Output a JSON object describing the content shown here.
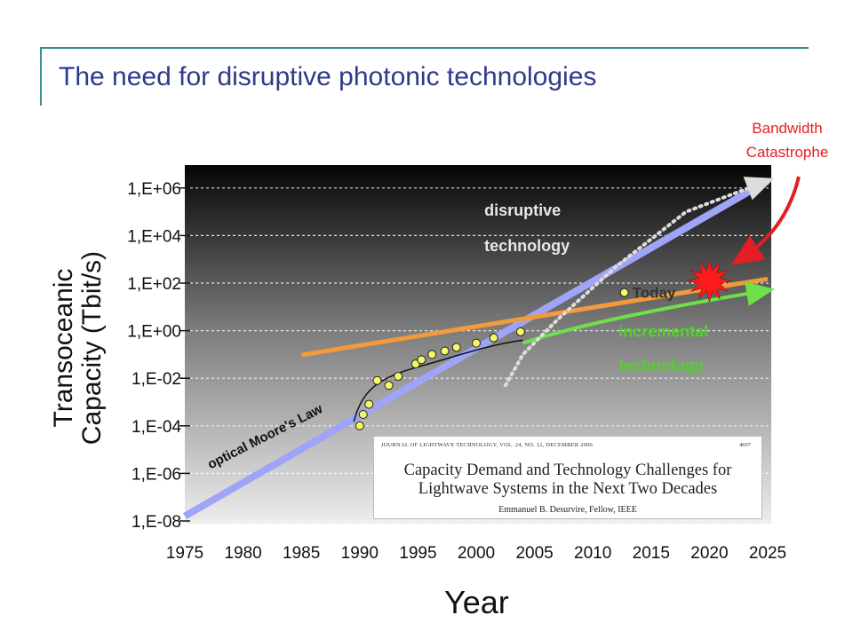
{
  "slide": {
    "title": "The need for disruptive photonic technologies",
    "callout_lines": [
      "Bandwidth",
      "Catastrophe"
    ]
  },
  "chart_data": {
    "type": "line",
    "title": "",
    "xlabel": "Year",
    "ylabel_lines": [
      "Transoceanic",
      "Capacity (Tbit/s)"
    ],
    "x_ticks": [
      "1975",
      "1980",
      "1985",
      "1990",
      "1995",
      "2000",
      "2005",
      "2010",
      "2015",
      "2020",
      "2025"
    ],
    "y_ticks": [
      "1,E-08",
      "1,E-06",
      "1,E-04",
      "1,E-02",
      "1,E+00",
      "1,E+02",
      "1,E+04",
      "1,E+06"
    ],
    "xlim": [
      1975,
      2025
    ],
    "ylim_log10": [
      -8,
      6.6
    ],
    "yscale": "log",
    "grid": true,
    "series": [
      {
        "name": "optical Moore's Law",
        "color": "#a0a4f8",
        "points": [
          [
            1975,
            1.6e-08
          ],
          [
            2025,
            2000000.0
          ]
        ]
      },
      {
        "name": "",
        "color": "#f39a3b",
        "points": [
          [
            1975,
            0.015
          ],
          [
            2025,
            150
          ]
        ],
        "start": 1975.2
      },
      {
        "name": "incremental technology",
        "color": "#6fe04a",
        "points": [
          [
            2004,
            0.3
          ],
          [
            2010,
            3
          ],
          [
            2025,
            50
          ]
        ]
      },
      {
        "name": "disruptive technology",
        "color": "#dddddd",
        "points": [
          [
            2002.5,
            0.005
          ],
          [
            2004,
            0.1
          ],
          [
            2007,
            3
          ],
          [
            2012,
            500
          ],
          [
            2018,
            100000.0
          ],
          [
            2025,
            2000000.0
          ]
        ]
      },
      {
        "name": "",
        "color": "#111111",
        "points": [
          [
            1989.5,
            0.00015
          ],
          [
            1991,
            0.004
          ],
          [
            1995,
            0.03
          ],
          [
            2000,
            0.15
          ],
          [
            2004,
            0.4
          ]
        ]
      }
    ],
    "scatter": [
      [
        1990.0,
        0.0001
      ],
      [
        1990.3,
        0.0003
      ],
      [
        1990.8,
        0.0008
      ],
      [
        1991.5,
        0.008
      ],
      [
        1992.5,
        0.005
      ],
      [
        1993.3,
        0.012
      ],
      [
        1994.8,
        0.04
      ],
      [
        1995.3,
        0.06
      ],
      [
        1996.2,
        0.1
      ],
      [
        1997.3,
        0.14
      ],
      [
        1998.3,
        0.2
      ],
      [
        2000.0,
        0.3
      ],
      [
        2001.5,
        0.5
      ],
      [
        2003.8,
        0.9
      ]
    ],
    "annotations": {
      "moores_law": "optical Moore's Law",
      "disruptive": [
        "disruptive",
        "technology"
      ],
      "incremental": [
        "incremental",
        "technology"
      ],
      "today": "Today"
    },
    "today_point": [
      2012.7,
      40
    ],
    "burst_point": [
      2020,
      125
    ],
    "colors": {
      "moores": "#a0a4f8",
      "orange": "#f39a3b",
      "green": "#6fe04a",
      "incremental_text": "#52d12c",
      "burst": "#ff1a1a",
      "arrow": "#e31e24"
    }
  },
  "inset_paper": {
    "journal": "JOURNAL OF LIGHTWAVE TECHNOLOGY, VOL. 24, NO. 12, DECEMBER 2006",
    "page": "4697",
    "title_lines": [
      "Capacity Demand and Technology Challenges for",
      "Lightwave Systems in the Next Two Decades"
    ],
    "author": "Emmanuel B. Desurvire, Fellow, IEEE"
  }
}
